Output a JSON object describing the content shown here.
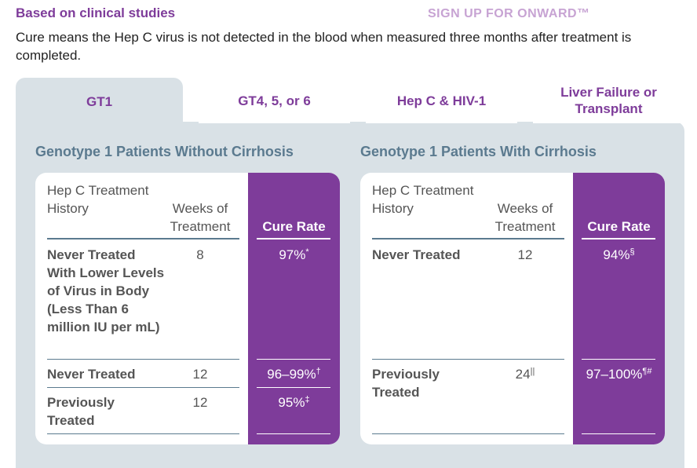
{
  "header": {
    "subtitle": "Based on clinical studies",
    "signup_link": "SIGN UP FOR ONWARD™",
    "intro": "Cure means the Hep C virus is not detected in the blood when measured three months after treatment is completed."
  },
  "tabs": [
    {
      "label": "GT1",
      "active": true
    },
    {
      "label": "GT4, 5, or 6",
      "active": false
    },
    {
      "label": "Hep C & HIV-1",
      "active": false
    },
    {
      "label": "Liver Failure or Transplant",
      "active": false
    }
  ],
  "table_headers": {
    "history": "Hep C Treatment History",
    "weeks": "Weeks of Treatment",
    "cure": "Cure Rate"
  },
  "sections": [
    {
      "title": "Genotype 1 Patients Without Cirrhosis",
      "rows": [
        {
          "history": "Never Treated With Lower Levels of Virus in Body (Less Than 6 million IU per mL)",
          "weeks": "8",
          "weeks_sup": "",
          "rate": "97%",
          "rate_sup": "*"
        },
        {
          "history": "Never Treated",
          "weeks": "12",
          "weeks_sup": "",
          "rate": "96–99%",
          "rate_sup": "†"
        },
        {
          "history": "Previously Treated",
          "weeks": "12",
          "weeks_sup": "",
          "rate": "95%",
          "rate_sup": "‡"
        }
      ]
    },
    {
      "title": "Genotype 1 Patients With Cirrhosis",
      "rows": [
        {
          "history": "Never Treated",
          "weeks": "12",
          "weeks_sup": "",
          "rate": "94%",
          "rate_sup": "§"
        },
        {
          "history": "Previously Treated",
          "weeks": "24",
          "weeks_sup": "||",
          "rate": "97–100%",
          "rate_sup": "¶#"
        }
      ]
    }
  ],
  "colors": {
    "accent": "#7e3c9a",
    "panel": "#d9e1e6",
    "section_title": "#5b7a8f"
  }
}
